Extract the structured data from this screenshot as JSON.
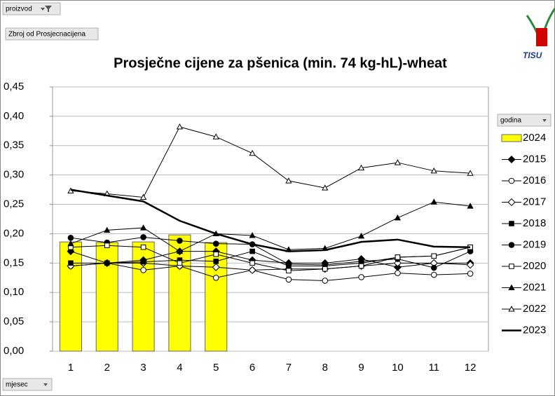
{
  "page_buttons": {
    "filter": "proizvod",
    "data_field": "Zbroj od Prosjecnacijena",
    "legend_field": "godina",
    "axis_field": "mjesec"
  },
  "logo": "TISU",
  "chart_data": {
    "type": "combo",
    "title": "Prosječne cijene za pšenica (min. 74 kg-hL)-wheat",
    "categories": [
      "1",
      "2",
      "3",
      "4",
      "5",
      "6",
      "7",
      "8",
      "9",
      "10",
      "11",
      "12"
    ],
    "ylim": [
      0,
      0.45
    ],
    "yticks": [
      {
        "value": 0,
        "label": "0,00"
      },
      {
        "value": 0.05,
        "label": "0,05"
      },
      {
        "value": 0.1,
        "label": "0,10"
      },
      {
        "value": 0.15,
        "label": "0,15"
      },
      {
        "value": 0.2,
        "label": "0,20"
      },
      {
        "value": 0.25,
        "label": "0,25"
      },
      {
        "value": 0.3,
        "label": "0,30"
      },
      {
        "value": 0.35,
        "label": "0,35"
      },
      {
        "value": 0.4,
        "label": "0,40"
      },
      {
        "value": 0.45,
        "label": "0,45"
      }
    ],
    "grid": true,
    "legend": "right",
    "series": [
      {
        "name": "2024",
        "kind": "bar",
        "color": "#ffff00",
        "values": [
          0.186,
          0.185,
          0.186,
          0.198,
          0.185,
          null,
          null,
          null,
          null,
          null,
          null,
          null
        ]
      },
      {
        "name": "2015",
        "kind": "line",
        "marker": "diamond",
        "filled": true,
        "color": "#000000",
        "values": [
          0.17,
          0.15,
          0.155,
          0.17,
          0.17,
          0.155,
          0.15,
          0.15,
          0.157,
          0.143,
          0.15,
          0.15
        ]
      },
      {
        "name": "2016",
        "kind": "line",
        "marker": "circle",
        "filled": false,
        "color": "#000000",
        "values": [
          0.145,
          0.15,
          0.138,
          0.145,
          0.125,
          0.138,
          0.122,
          0.12,
          0.126,
          0.133,
          0.13,
          0.132
        ]
      },
      {
        "name": "2017",
        "kind": "line",
        "marker": "diamond",
        "filled": false,
        "color": "#000000",
        "values": [
          0.145,
          0.15,
          0.15,
          0.145,
          0.143,
          0.138,
          0.14,
          0.14,
          0.145,
          0.15,
          0.15,
          0.147
        ]
      },
      {
        "name": "2018",
        "kind": "line",
        "marker": "square",
        "filled": true,
        "color": "#000000",
        "values": [
          0.15,
          0.15,
          0.152,
          0.155,
          0.153,
          0.17,
          0.145,
          0.145,
          0.15,
          0.16,
          0.162,
          0.177
        ]
      },
      {
        "name": "2019",
        "kind": "line",
        "marker": "circle",
        "filled": true,
        "color": "#000000",
        "values": [
          0.193,
          0.185,
          0.194,
          0.188,
          0.183,
          0.182,
          0.148,
          0.147,
          0.153,
          0.157,
          0.142,
          0.17
        ]
      },
      {
        "name": "2020",
        "kind": "line",
        "marker": "square",
        "filled": false,
        "color": "#000000",
        "values": [
          0.177,
          0.18,
          0.177,
          0.15,
          0.165,
          0.15,
          0.137,
          0.14,
          0.145,
          0.16,
          0.162,
          0.177
        ]
      },
      {
        "name": "2021",
        "kind": "line",
        "marker": "triangle",
        "filled": true,
        "color": "#000000",
        "values": [
          0.183,
          0.206,
          0.21,
          0.17,
          0.2,
          0.197,
          0.173,
          0.175,
          0.196,
          0.227,
          0.254,
          0.247
        ]
      },
      {
        "name": "2022",
        "kind": "line",
        "marker": "triangle",
        "filled": false,
        "color": "#000000",
        "values": [
          0.273,
          0.268,
          0.262,
          0.382,
          0.365,
          0.337,
          0.29,
          0.278,
          0.312,
          0.321,
          0.307,
          0.303
        ]
      },
      {
        "name": "2023",
        "kind": "line",
        "marker": "none",
        "width": 2.5,
        "color": "#000000",
        "values": [
          0.275,
          0.265,
          0.255,
          0.222,
          0.2,
          0.182,
          0.17,
          0.172,
          0.186,
          0.19,
          0.178,
          0.177
        ]
      }
    ]
  }
}
